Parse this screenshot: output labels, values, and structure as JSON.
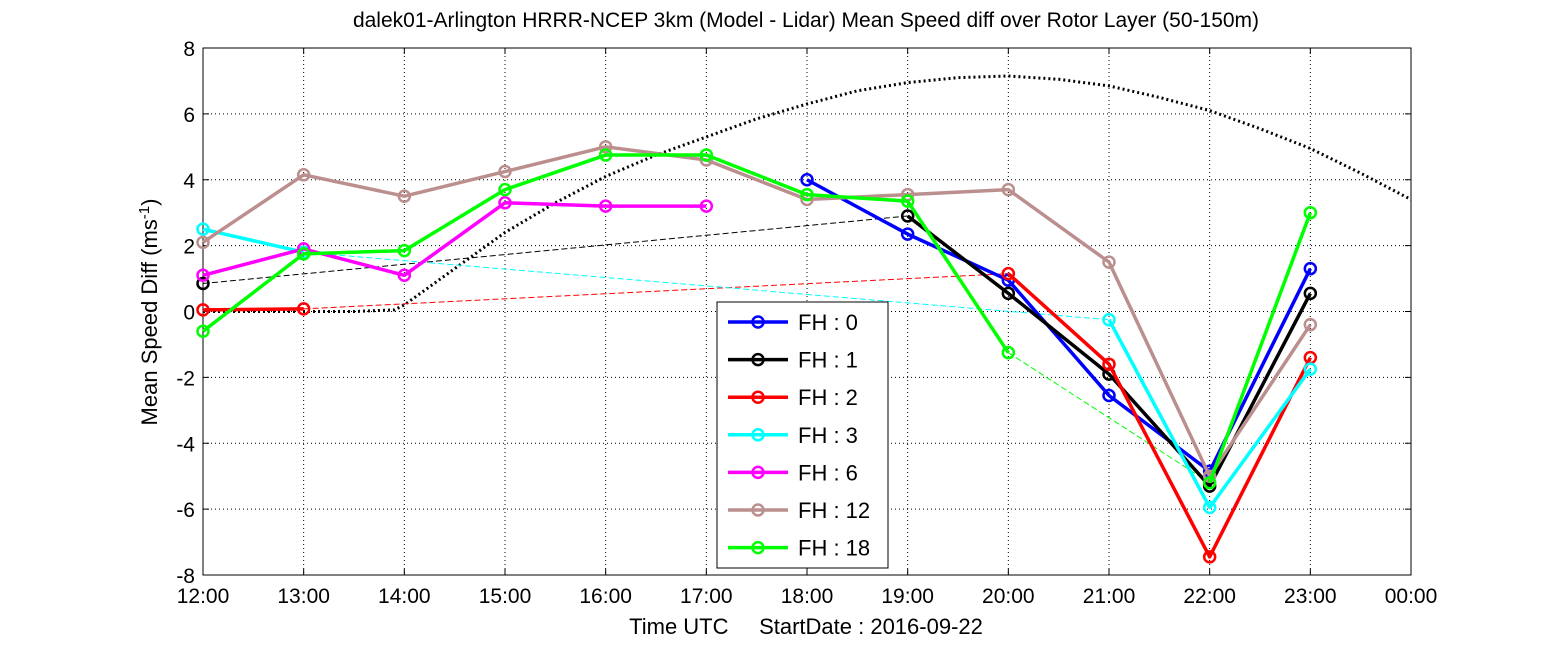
{
  "chart_data": {
    "type": "line",
    "title": "dalek01-Arlington HRRR-NCEP 3km (Model - Lidar) Mean Speed diff over Rotor Layer (50-150m)",
    "xlabel": "Time UTC     StartDate : 2016-09-22",
    "ylabel_main": "Mean Speed Diff (ms",
    "ylabel_sup": "-1",
    "ylabel_close": ")",
    "x_ticks": [
      "12:00",
      "13:00",
      "14:00",
      "15:00",
      "16:00",
      "17:00",
      "18:00",
      "19:00",
      "20:00",
      "21:00",
      "22:00",
      "23:00",
      "00:00"
    ],
    "xlim": [
      12,
      24
    ],
    "ylim": [
      -8,
      8
    ],
    "y_ticks": [
      -8,
      -6,
      -4,
      -2,
      0,
      2,
      4,
      6,
      8
    ],
    "y_tick_labels": [
      "-8",
      "-6",
      "-4",
      "-2",
      "0",
      "2",
      "4",
      "6",
      "8"
    ],
    "grid": true,
    "legend_position": "bottom-center",
    "series": [
      {
        "name": "FH : 0",
        "color": "#0000ff",
        "points": [
          [
            18,
            4.0
          ],
          [
            19,
            2.35
          ],
          [
            20,
            0.95
          ],
          [
            21,
            -2.55
          ],
          [
            22,
            -4.85
          ],
          [
            23,
            1.3
          ]
        ]
      },
      {
        "name": "FH : 1",
        "color": "#000000",
        "points": [
          [
            12,
            0.85
          ],
          [
            19,
            2.9
          ],
          [
            20,
            0.55
          ],
          [
            21,
            -1.9
          ],
          [
            22,
            -5.3
          ],
          [
            23,
            0.55
          ]
        ]
      },
      {
        "name": "FH : 2",
        "color": "#ff0000",
        "points": [
          [
            12,
            0.05
          ],
          [
            13,
            0.08
          ],
          [
            20,
            1.15
          ],
          [
            21,
            -1.6
          ],
          [
            22,
            -7.45
          ],
          [
            23,
            -1.4
          ]
        ]
      },
      {
        "name": "FH : 3",
        "color": "#00ffff",
        "points": [
          [
            12,
            2.5
          ],
          [
            13,
            1.8
          ],
          [
            21,
            -0.25
          ],
          [
            22,
            -5.95
          ],
          [
            23,
            -1.75
          ]
        ]
      },
      {
        "name": "FH : 6",
        "color": "#ff00ff",
        "points": [
          [
            12,
            1.1
          ],
          [
            13,
            1.9
          ],
          [
            14,
            1.1
          ],
          [
            15,
            3.3
          ],
          [
            16,
            3.2
          ],
          [
            17,
            3.2
          ]
        ]
      },
      {
        "name": "FH : 12",
        "color": "#bc8f8f",
        "points": [
          [
            12,
            2.1
          ],
          [
            13,
            4.15
          ],
          [
            14,
            3.5
          ],
          [
            15,
            4.25
          ],
          [
            16,
            5.0
          ],
          [
            17,
            4.6
          ],
          [
            18,
            3.4
          ],
          [
            19,
            3.55
          ],
          [
            20,
            3.7
          ],
          [
            21,
            1.5
          ],
          [
            22,
            -5.0
          ],
          [
            23,
            -0.4
          ]
        ]
      },
      {
        "name": "FH : 18",
        "color": "#00ff00",
        "points": [
          [
            12,
            -0.6
          ],
          [
            13,
            1.75
          ],
          [
            14,
            1.85
          ],
          [
            15,
            3.7
          ],
          [
            16,
            4.75
          ],
          [
            17,
            4.75
          ],
          [
            18,
            3.55
          ],
          [
            19,
            3.35
          ],
          [
            20,
            -1.25
          ],
          [
            22,
            -5.2
          ],
          [
            23,
            3.0
          ]
        ]
      }
    ],
    "reference_curve": {
      "color": "#000000",
      "points": [
        [
          12,
          0.0
        ],
        [
          13,
          0.0
        ],
        [
          13.5,
          0.0
        ],
        [
          13.9,
          0.05
        ],
        [
          14,
          0.2
        ],
        [
          14.5,
          1.3
        ],
        [
          15,
          2.4
        ],
        [
          15.5,
          3.3
        ],
        [
          16,
          4.1
        ],
        [
          16.5,
          4.75
        ],
        [
          17,
          5.3
        ],
        [
          17.5,
          5.85
        ],
        [
          18,
          6.3
        ],
        [
          18.5,
          6.7
        ],
        [
          19,
          6.95
        ],
        [
          19.5,
          7.1
        ],
        [
          20,
          7.15
        ],
        [
          20.5,
          7.05
        ],
        [
          21,
          6.85
        ],
        [
          21.5,
          6.5
        ],
        [
          22,
          6.1
        ],
        [
          22.5,
          5.55
        ],
        [
          23,
          4.95
        ],
        [
          23.5,
          4.2
        ],
        [
          24,
          3.4
        ]
      ]
    }
  }
}
